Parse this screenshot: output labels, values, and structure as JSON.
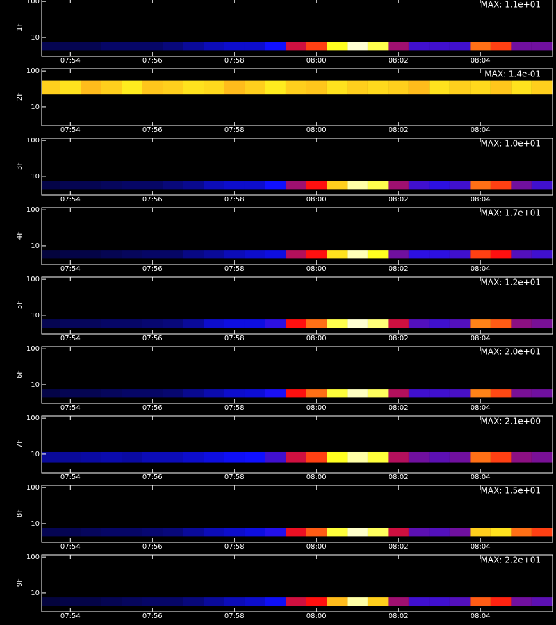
{
  "chart_data": [
    {
      "type": "heatmap",
      "ylabel": "1F",
      "max_label": "MAX: 1.1e+01",
      "log_y": true,
      "colormap": [
        "#000000",
        "#1010ff",
        "#ff1010",
        "#ffff20",
        "#ffffff"
      ],
      "xlim": [
        473.3,
        485.76
      ],
      "xticks": [
        {
          "value": 474,
          "label": "07:54"
        },
        {
          "value": 476,
          "label": "07:56"
        },
        {
          "value": 478,
          "label": "07:58"
        },
        {
          "value": 480,
          "label": "08:00"
        },
        {
          "value": 482,
          "label": "08:02"
        },
        {
          "value": 484,
          "label": "08:04"
        }
      ],
      "ylim": [
        3,
        115
      ],
      "yticks": [
        10,
        100
      ],
      "band": [
        4.4,
        7.6
      ],
      "x": [
        473.5,
        474,
        474.5,
        475,
        475.5,
        476,
        476.5,
        477,
        477.5,
        478,
        478.5,
        479,
        479.5,
        480,
        480.5,
        481,
        481.5,
        482,
        482.5,
        483,
        483.5,
        484,
        484.5,
        485,
        485.5
      ],
      "values": [
        0.08,
        0.08,
        0.08,
        0.1,
        0.1,
        0.1,
        0.12,
        0.15,
        0.18,
        0.2,
        0.2,
        0.25,
        0.45,
        0.55,
        0.75,
        0.95,
        0.8,
        0.4,
        0.3,
        0.3,
        0.3,
        0.6,
        0.55,
        0.35,
        0.35
      ]
    },
    {
      "type": "heatmap",
      "ylabel": "2F",
      "max_label": "MAX: 1.4e-01",
      "log_y": true,
      "colormap": [
        "#000000",
        "#1010ff",
        "#ff1010",
        "#ffff20",
        "#ffffff"
      ],
      "xlim": [
        473.3,
        485.76
      ],
      "xticks": [
        {
          "value": 474,
          "label": "07:54"
        },
        {
          "value": 476,
          "label": "07:56"
        },
        {
          "value": 478,
          "label": "07:58"
        },
        {
          "value": 480,
          "label": "08:00"
        },
        {
          "value": 482,
          "label": "08:02"
        },
        {
          "value": 484,
          "label": "08:04"
        }
      ],
      "ylim": [
        3,
        115
      ],
      "yticks": [
        10,
        100
      ],
      "band": [
        22,
        55
      ],
      "x": [
        473.5,
        474,
        474.5,
        475,
        475.5,
        476,
        476.5,
        477,
        477.5,
        478,
        478.5,
        479,
        479.5,
        480,
        480.5,
        481,
        481.5,
        482,
        482.5,
        483,
        483.5,
        484,
        484.5,
        485,
        485.5
      ],
      "values": [
        0.7,
        0.72,
        0.68,
        0.7,
        0.73,
        0.69,
        0.7,
        0.72,
        0.71,
        0.68,
        0.7,
        0.73,
        0.7,
        0.69,
        0.72,
        0.7,
        0.71,
        0.7,
        0.68,
        0.72,
        0.7,
        0.71,
        0.69,
        0.72,
        0.7
      ]
    },
    {
      "type": "heatmap",
      "ylabel": "3F",
      "max_label": "MAX: 1.0e+01",
      "log_y": true,
      "colormap": [
        "#000000",
        "#1010ff",
        "#ff1010",
        "#ffff20",
        "#ffffff"
      ],
      "xlim": [
        473.3,
        485.76
      ],
      "xticks": [
        {
          "value": 474,
          "label": "07:54"
        },
        {
          "value": 476,
          "label": "07:56"
        },
        {
          "value": 478,
          "label": "07:58"
        },
        {
          "value": 480,
          "label": "08:00"
        },
        {
          "value": 482,
          "label": "08:02"
        },
        {
          "value": 484,
          "label": "08:04"
        }
      ],
      "ylim": [
        3,
        115
      ],
      "yticks": [
        10,
        100
      ],
      "band": [
        4.4,
        7.6
      ],
      "x": [
        473.5,
        474,
        474.5,
        475,
        475.5,
        476,
        476.5,
        477,
        477.5,
        478,
        478.5,
        479,
        479.5,
        480,
        480.5,
        481,
        481.5,
        482,
        482.5,
        483,
        483.5,
        484,
        484.5,
        485,
        485.5
      ],
      "values": [
        0.07,
        0.08,
        0.08,
        0.09,
        0.1,
        0.1,
        0.12,
        0.14,
        0.18,
        0.2,
        0.2,
        0.25,
        0.4,
        0.5,
        0.7,
        0.9,
        0.8,
        0.4,
        0.3,
        0.28,
        0.3,
        0.6,
        0.55,
        0.35,
        0.3
      ]
    },
    {
      "type": "heatmap",
      "ylabel": "4F",
      "max_label": "MAX: 1.7e+01",
      "log_y": true,
      "colormap": [
        "#000000",
        "#1010ff",
        "#ff1010",
        "#ffff20",
        "#ffffff"
      ],
      "xlim": [
        473.3,
        485.76
      ],
      "xticks": [
        {
          "value": 474,
          "label": "07:54"
        },
        {
          "value": 476,
          "label": "07:56"
        },
        {
          "value": 478,
          "label": "07:58"
        },
        {
          "value": 480,
          "label": "08:00"
        },
        {
          "value": 482,
          "label": "08:02"
        },
        {
          "value": 484,
          "label": "08:04"
        }
      ],
      "ylim": [
        3,
        115
      ],
      "yticks": [
        10,
        100
      ],
      "band": [
        4.4,
        7.6
      ],
      "x": [
        473.5,
        474,
        474.5,
        475,
        475.5,
        476,
        476.5,
        477,
        477.5,
        478,
        478.5,
        479,
        479.5,
        480,
        480.5,
        481,
        481.5,
        482,
        482.5,
        483,
        483.5,
        484,
        484.5,
        485,
        485.5
      ],
      "values": [
        0.06,
        0.07,
        0.07,
        0.08,
        0.09,
        0.1,
        0.1,
        0.13,
        0.15,
        0.18,
        0.2,
        0.22,
        0.42,
        0.5,
        0.72,
        0.92,
        0.75,
        0.35,
        0.28,
        0.28,
        0.3,
        0.55,
        0.5,
        0.32,
        0.3
      ]
    },
    {
      "type": "heatmap",
      "ylabel": "5F",
      "max_label": "MAX: 1.2e+01",
      "log_y": true,
      "colormap": [
        "#000000",
        "#1010ff",
        "#ff1010",
        "#ffff20",
        "#ffffff"
      ],
      "xlim": [
        473.3,
        485.76
      ],
      "xticks": [
        {
          "value": 474,
          "label": "07:54"
        },
        {
          "value": 476,
          "label": "07:56"
        },
        {
          "value": 478,
          "label": "07:58"
        },
        {
          "value": 480,
          "label": "08:00"
        },
        {
          "value": 482,
          "label": "08:02"
        },
        {
          "value": 484,
          "label": "08:04"
        }
      ],
      "ylim": [
        3,
        115
      ],
      "yticks": [
        10,
        100
      ],
      "band": [
        4.4,
        7.6
      ],
      "x": [
        473.5,
        474,
        474.5,
        475,
        475.5,
        476,
        476.5,
        477,
        477.5,
        478,
        478.5,
        479,
        479.5,
        480,
        480.5,
        481,
        481.5,
        482,
        482.5,
        483,
        483.5,
        484,
        484.5,
        485,
        485.5
      ],
      "values": [
        0.08,
        0.09,
        0.09,
        0.1,
        0.1,
        0.11,
        0.12,
        0.15,
        0.2,
        0.22,
        0.22,
        0.28,
        0.5,
        0.6,
        0.8,
        0.95,
        0.85,
        0.45,
        0.32,
        0.3,
        0.32,
        0.62,
        0.58,
        0.38,
        0.36
      ]
    },
    {
      "type": "heatmap",
      "ylabel": "6F",
      "max_label": "MAX: 2.0e+01",
      "log_y": true,
      "colormap": [
        "#000000",
        "#1010ff",
        "#ff1010",
        "#ffff20",
        "#ffffff"
      ],
      "xlim": [
        473.3,
        485.76
      ],
      "xticks": [
        {
          "value": 474,
          "label": "07:54"
        },
        {
          "value": 476,
          "label": "07:56"
        },
        {
          "value": 478,
          "label": "07:58"
        },
        {
          "value": 480,
          "label": "08:00"
        },
        {
          "value": 482,
          "label": "08:02"
        },
        {
          "value": 484,
          "label": "08:04"
        }
      ],
      "ylim": [
        3,
        115
      ],
      "yticks": [
        10,
        100
      ],
      "band": [
        4.4,
        7.6
      ],
      "x": [
        473.5,
        474,
        474.5,
        475,
        475.5,
        476,
        476.5,
        477,
        477.5,
        478,
        478.5,
        479,
        479.5,
        480,
        480.5,
        481,
        481.5,
        482,
        482.5,
        483,
        483.5,
        484,
        484.5,
        485,
        485.5
      ],
      "values": [
        0.07,
        0.08,
        0.08,
        0.09,
        0.1,
        0.1,
        0.11,
        0.14,
        0.17,
        0.2,
        0.21,
        0.26,
        0.5,
        0.6,
        0.78,
        0.93,
        0.82,
        0.42,
        0.3,
        0.3,
        0.31,
        0.62,
        0.56,
        0.36,
        0.35
      ]
    },
    {
      "type": "heatmap",
      "ylabel": "7F",
      "max_label": "MAX: 2.1e+00",
      "log_y": true,
      "colormap": [
        "#000000",
        "#1010ff",
        "#ff1010",
        "#ffff20",
        "#ffffff"
      ],
      "xlim": [
        473.3,
        485.76
      ],
      "xticks": [
        {
          "value": 474,
          "label": "07:54"
        },
        {
          "value": 476,
          "label": "07:56"
        },
        {
          "value": 478,
          "label": "07:58"
        },
        {
          "value": 480,
          "label": "08:00"
        },
        {
          "value": 482,
          "label": "08:02"
        },
        {
          "value": 484,
          "label": "08:04"
        }
      ],
      "ylim": [
        3,
        115
      ],
      "yticks": [
        10,
        100
      ],
      "band": [
        5.7,
        11.4
      ],
      "x": [
        473.5,
        474,
        474.5,
        475,
        475.5,
        476,
        476.5,
        477,
        477.5,
        478,
        478.5,
        479,
        479.5,
        480,
        480.5,
        481,
        481.5,
        482,
        482.5,
        483,
        483.5,
        484,
        484.5,
        485,
        485.5
      ],
      "values": [
        0.15,
        0.15,
        0.16,
        0.17,
        0.16,
        0.18,
        0.18,
        0.2,
        0.22,
        0.24,
        0.25,
        0.3,
        0.45,
        0.55,
        0.75,
        0.9,
        0.78,
        0.42,
        0.35,
        0.33,
        0.35,
        0.6,
        0.55,
        0.38,
        0.36
      ]
    },
    {
      "type": "heatmap",
      "ylabel": "8F",
      "max_label": "MAX: 1.5e+01",
      "log_y": true,
      "colormap": [
        "#000000",
        "#1010ff",
        "#ff1010",
        "#ffff20",
        "#ffffff"
      ],
      "xlim": [
        473.3,
        485.76
      ],
      "xticks": [
        {
          "value": 474,
          "label": "07:54"
        },
        {
          "value": 476,
          "label": "07:56"
        },
        {
          "value": 478,
          "label": "07:58"
        },
        {
          "value": 480,
          "label": "08:00"
        },
        {
          "value": 482,
          "label": "08:02"
        },
        {
          "value": 484,
          "label": "08:04"
        }
      ],
      "ylim": [
        3,
        115
      ],
      "yticks": [
        10,
        100
      ],
      "band": [
        4.4,
        7.6
      ],
      "x": [
        473.5,
        474,
        474.5,
        475,
        475.5,
        476,
        476.5,
        477,
        477.5,
        478,
        478.5,
        479,
        479.5,
        480,
        480.5,
        481,
        481.5,
        482,
        482.5,
        483,
        483.5,
        484,
        484.5,
        485,
        485.5
      ],
      "values": [
        0.08,
        0.08,
        0.09,
        0.1,
        0.1,
        0.11,
        0.12,
        0.15,
        0.18,
        0.2,
        0.22,
        0.27,
        0.48,
        0.58,
        0.78,
        0.94,
        0.82,
        0.45,
        0.33,
        0.32,
        0.35,
        0.7,
        0.72,
        0.6,
        0.55
      ]
    },
    {
      "type": "heatmap",
      "ylabel": "9F",
      "max_label": "MAX: 2.2e+01",
      "log_y": true,
      "colormap": [
        "#000000",
        "#1010ff",
        "#ff1010",
        "#ffff20",
        "#ffffff"
      ],
      "xlim": [
        473.3,
        485.76
      ],
      "xticks": [
        {
          "value": 474,
          "label": "07:54"
        },
        {
          "value": 476,
          "label": "07:56"
        },
        {
          "value": 478,
          "label": "07:58"
        },
        {
          "value": 480,
          "label": "08:00"
        },
        {
          "value": 482,
          "label": "08:02"
        },
        {
          "value": 484,
          "label": "08:04"
        }
      ],
      "ylim": [
        3,
        115
      ],
      "yticks": [
        10,
        100
      ],
      "band": [
        4.4,
        7.6
      ],
      "x": [
        473.5,
        474,
        474.5,
        475,
        475.5,
        476,
        476.5,
        477,
        477.5,
        478,
        478.5,
        479,
        479.5,
        480,
        480.5,
        481,
        481.5,
        482,
        482.5,
        483,
        483.5,
        484,
        484.5,
        485,
        485.5
      ],
      "values": [
        0.06,
        0.07,
        0.07,
        0.08,
        0.09,
        0.1,
        0.1,
        0.12,
        0.15,
        0.18,
        0.2,
        0.24,
        0.45,
        0.5,
        0.68,
        0.9,
        0.7,
        0.4,
        0.3,
        0.3,
        0.32,
        0.58,
        0.52,
        0.35,
        0.33
      ]
    }
  ]
}
